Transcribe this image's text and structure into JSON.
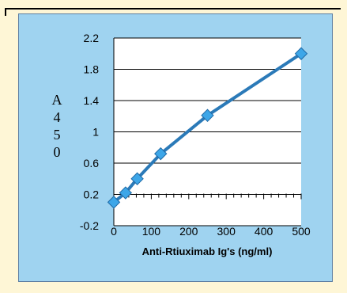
{
  "chart_data": {
    "type": "line",
    "x": [
      0,
      31.25,
      62.5,
      125,
      250,
      500
    ],
    "series": [
      {
        "values": [
          0.1,
          0.22,
          0.4,
          0.72,
          1.21,
          2.0
        ]
      }
    ],
    "xlabel": "Anti-Rtiuximab Ig's (ng/ml)",
    "ylabel": "A450",
    "xlim": [
      0,
      500
    ],
    "ylim": [
      -0.2,
      2.2
    ],
    "x_ticks": [
      "0",
      "100",
      "200",
      "300",
      "400",
      "500"
    ],
    "y_ticks": [
      "2.2",
      "1.8",
      "1.4",
      "1",
      "0.6",
      "0.2",
      "-0.2"
    ],
    "grid": "horizontal",
    "colors": {
      "line": "#2b7ab8",
      "marker": "#3da6e8",
      "marker_edge": "#1f6aa6",
      "plot_bg": "#ffffff",
      "panel_bg": "#9fd3f0"
    }
  }
}
